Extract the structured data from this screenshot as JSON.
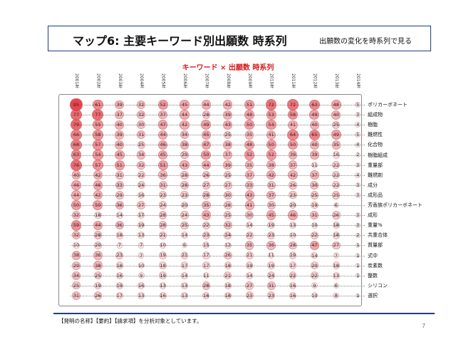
{
  "header": {
    "title": "マップ6:  主要キーワード別出願数  時系列",
    "subtitle": "出願数の変化を時系列で見る"
  },
  "chart_data": {
    "type": "bubble-matrix",
    "title": "キーワード × 出願数 時系列",
    "x": [
      "2001年",
      "2002年",
      "2003年",
      "2004年",
      "2005年",
      "2006年",
      "2007年",
      "2008年",
      "2009年",
      "2010年",
      "2011年",
      "2012年",
      "2013年",
      "2014年"
    ],
    "rows": [
      {
        "name": "ポリカーボネート",
        "values": [
          95,
          61,
          39,
          32,
          52,
          45,
          44,
          42,
          51,
          72,
          72,
          63,
          48,
          5
        ]
      },
      {
        "name": "組成物",
        "values": [
          77,
          77,
          37,
          32,
          37,
          44,
          28,
          39,
          48,
          53,
          58,
          49,
          40,
          3
        ]
      },
      {
        "name": "樹脂",
        "values": [
          79,
          55,
          40,
          30,
          47,
          42,
          49,
          43,
          50,
          54,
          41,
          40,
          25,
          4
        ]
      },
      {
        "name": "難燃性",
        "values": [
          66,
          58,
          39,
          31,
          44,
          34,
          45,
          25,
          35,
          41,
          64,
          65,
          49,
          5
        ]
      },
      {
        "name": "化合物",
        "values": [
          68,
          57,
          40,
          25,
          46,
          38,
          47,
          38,
          48,
          50,
          50,
          40,
          35,
          4
        ]
      },
      {
        "name": "樹脂組成",
        "values": [
          63,
          54,
          45,
          34,
          45,
          29,
          50,
          37,
          52,
          52,
          39,
          39,
          16,
          2
        ]
      },
      {
        "name": "重量部",
        "values": [
          76,
          57,
          51,
          32,
          51,
          43,
          44,
          39,
          35,
          38,
          37,
          11,
          22,
          3
        ]
      },
      {
        "name": "難燃剤",
        "values": [
          40,
          42,
          31,
          22,
          36,
          28,
          26,
          25,
          37,
          42,
          42,
          37,
          22,
          4
        ]
      },
      {
        "name": "成分",
        "values": [
          46,
          46,
          33,
          24,
          31,
          28,
          27,
          27,
          33,
          31,
          26,
          30,
          22,
          3
        ]
      },
      {
        "name": "成形品",
        "values": [
          44,
          42,
          29,
          16,
          23,
          23,
          28,
          30,
          43,
          37,
          23,
          25,
          25,
          3
        ]
      },
      {
        "name": "芳香族ポリカーボネート",
        "values": [
          50,
          50,
          36,
          27,
          24,
          20,
          35,
          28,
          41,
          30,
          20,
          19,
          6,
          null
        ]
      },
      {
        "name": "成形",
        "values": [
          32,
          18,
          14,
          17,
          28,
          24,
          43,
          25,
          30,
          45,
          46,
          31,
          26,
          3
        ]
      },
      {
        "name": "重量%",
        "values": [
          59,
          44,
          36,
          19,
          28,
          25,
          22,
          32,
          14,
          19,
          13,
          10,
          18,
          3
        ]
      },
      {
        "name": "共重合体",
        "values": [
          32,
          28,
          18,
          13,
          21,
          14,
          23,
          24,
          22,
          23,
          10,
          22,
          18,
          2
        ]
      },
      {
        "name": "質量部",
        "values": [
          10,
          20,
          7,
          7,
          10,
          6,
          15,
          12,
          35,
          36,
          28,
          47,
          27,
          1
        ]
      },
      {
        "name": "式中",
        "values": [
          38,
          36,
          23,
          7,
          19,
          21,
          17,
          26,
          21,
          11,
          19,
          14,
          7,
          1
        ]
      },
      {
        "name": "炭素数",
        "values": [
          29,
          38,
          18,
          10,
          18,
          17,
          17,
          18,
          19,
          19,
          17,
          20,
          18,
          1
        ]
      },
      {
        "name": "整数",
        "values": [
          34,
          25,
          16,
          9,
          19,
          14,
          11,
          21,
          14,
          24,
          22,
          22,
          13,
          1
        ]
      },
      {
        "name": "シリコン",
        "values": [
          25,
          19,
          19,
          16,
          13,
          13,
          28,
          18,
          27,
          31,
          16,
          9,
          6,
          null
        ]
      },
      {
        "name": "選択",
        "values": [
          31,
          26,
          17,
          13,
          16,
          13,
          16,
          18,
          23,
          23,
          16,
          10,
          8,
          1
        ]
      }
    ],
    "colors": {
      "bubble_fill": "#e8303a",
      "bubble_stroke": "#c2a0a0"
    }
  },
  "footer": {
    "note": "【発明の名称】【要約】【請求項】を分析対象としています。",
    "page": "7"
  }
}
